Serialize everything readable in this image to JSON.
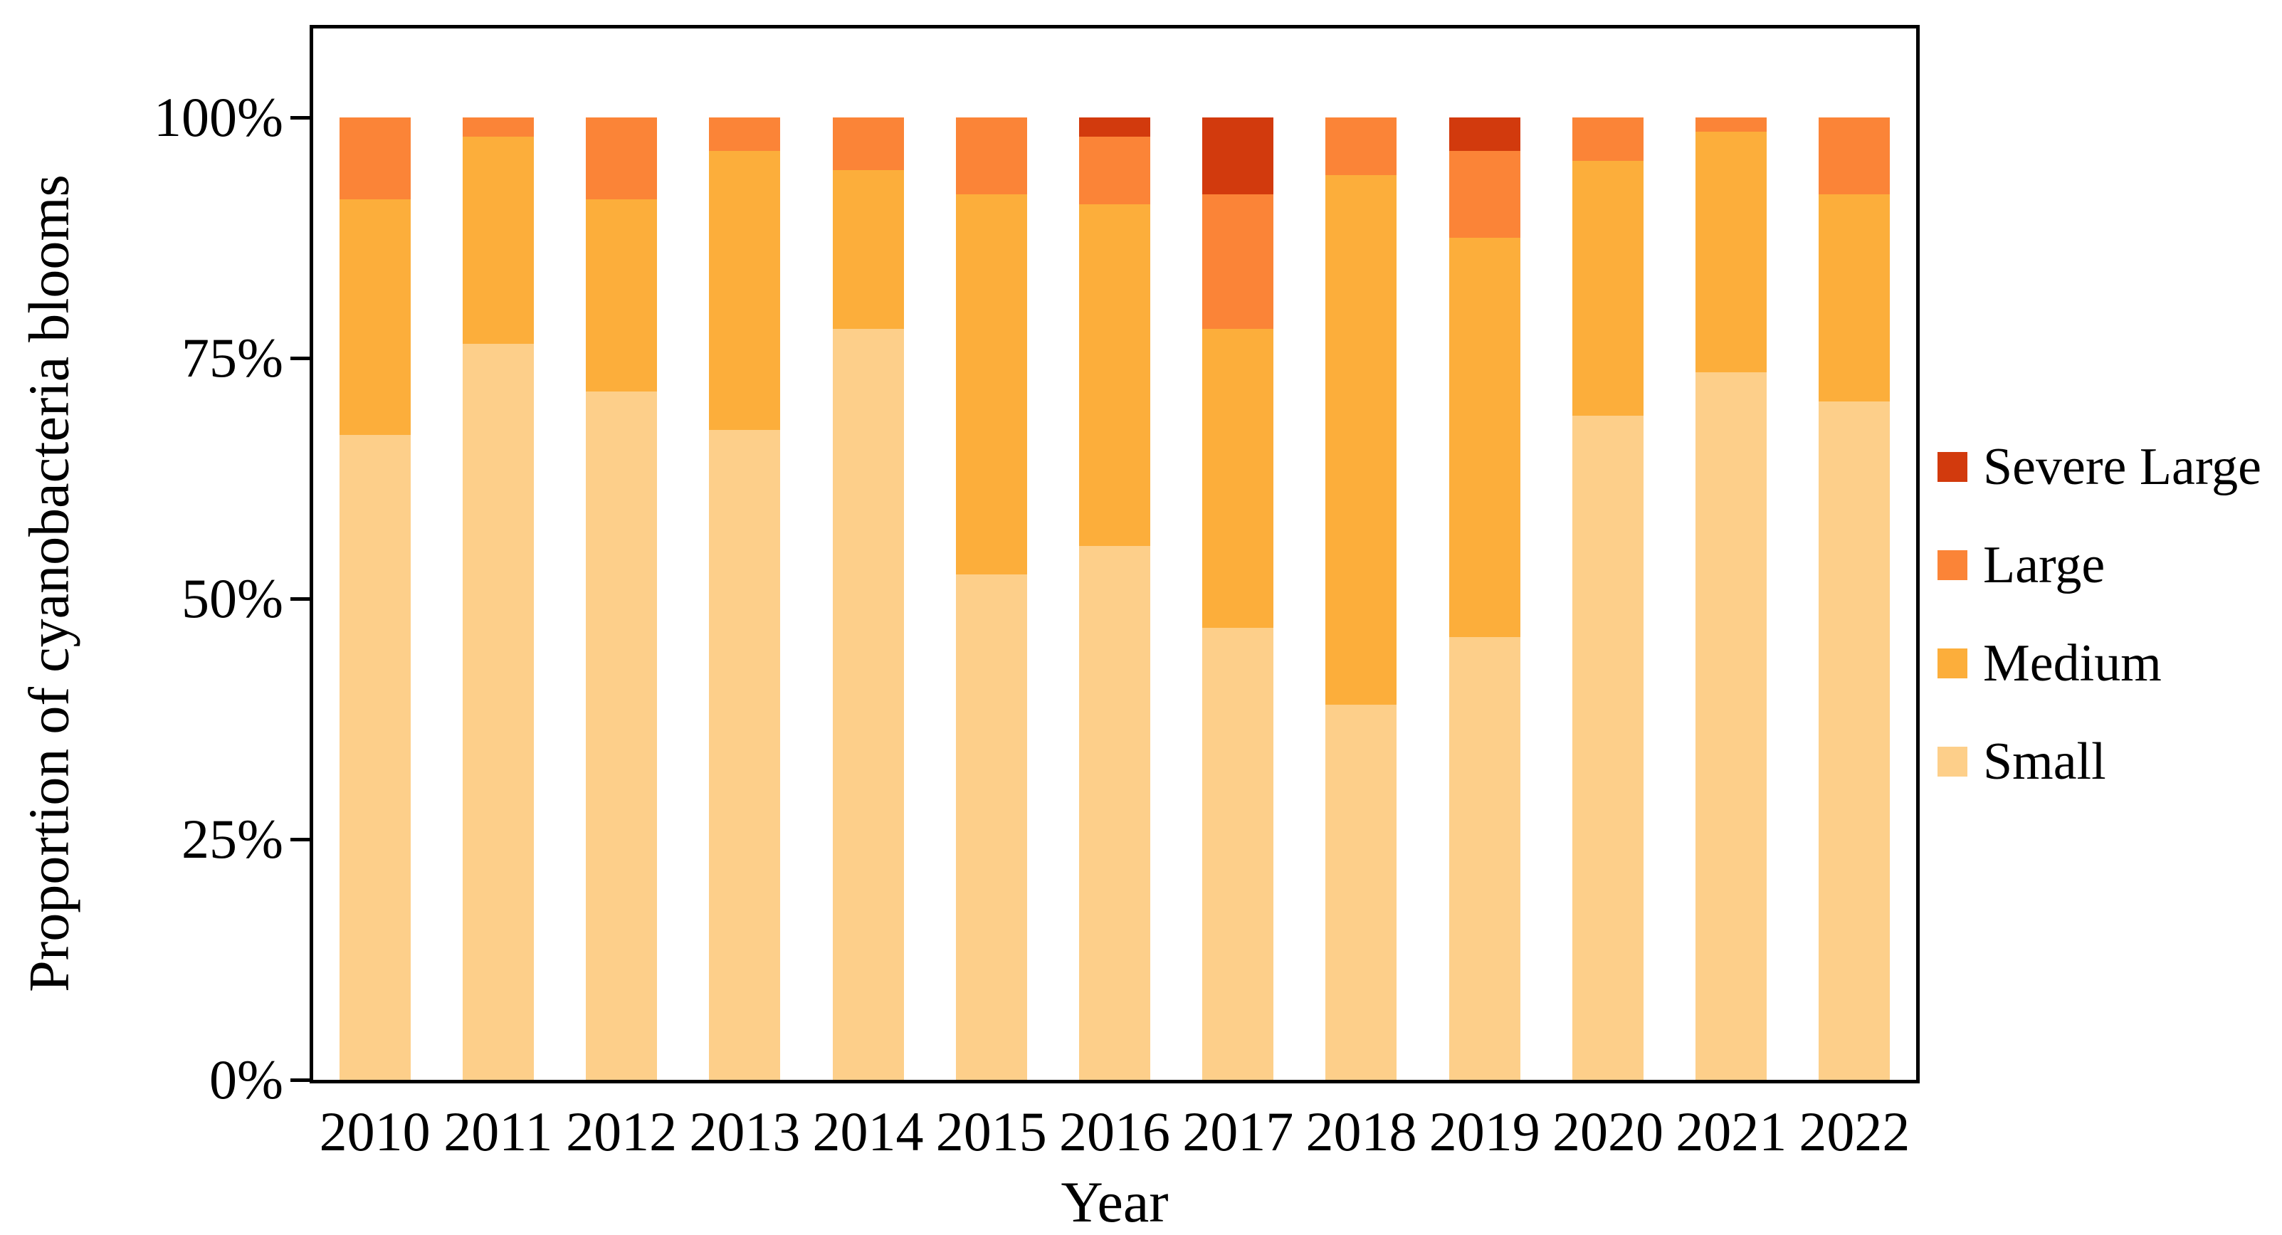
{
  "chart_data": {
    "type": "bar",
    "subtype": "stacked-100-percent",
    "title": "",
    "xlabel": "Year",
    "ylabel": "Proportion of cyanobacteria blooms",
    "categories": [
      "2010",
      "2011",
      "2012",
      "2013",
      "2014",
      "2015",
      "2016",
      "2017",
      "2018",
      "2019",
      "2020",
      "2021",
      "2022"
    ],
    "series": [
      {
        "name": "Small",
        "color": "#FDCF8A",
        "values": [
          67,
          76.5,
          71.5,
          67.5,
          78,
          52.5,
          55.5,
          47,
          39,
          46,
          69,
          73.5,
          70.5
        ]
      },
      {
        "name": "Medium",
        "color": "#FCAE3B",
        "values": [
          24.5,
          21.5,
          20,
          29,
          16.5,
          39.5,
          35.5,
          31,
          55,
          41.5,
          26.5,
          25,
          21.5
        ]
      },
      {
        "name": "Large",
        "color": "#FB8437",
        "values": [
          8.5,
          2,
          8.5,
          3.5,
          5.5,
          8,
          7,
          14,
          6,
          9,
          4.5,
          1.5,
          8
        ]
      },
      {
        "name": "Severe Large",
        "color": "#D23A0D",
        "values": [
          0,
          0,
          0,
          0,
          0,
          0,
          2,
          8,
          0,
          3.5,
          0,
          0,
          0
        ]
      }
    ],
    "legend_order": [
      "Severe Large",
      "Large",
      "Medium",
      "Small"
    ],
    "legend_position": "right",
    "yticks": [
      {
        "label": "100%",
        "value": 100
      },
      {
        "label": "75%",
        "value": 75
      },
      {
        "label": "50%",
        "value": 50
      },
      {
        "label": "25%",
        "value": 25
      },
      {
        "label": "0%",
        "value": 0
      }
    ],
    "ylim": [
      0,
      109
    ],
    "grid": false
  }
}
